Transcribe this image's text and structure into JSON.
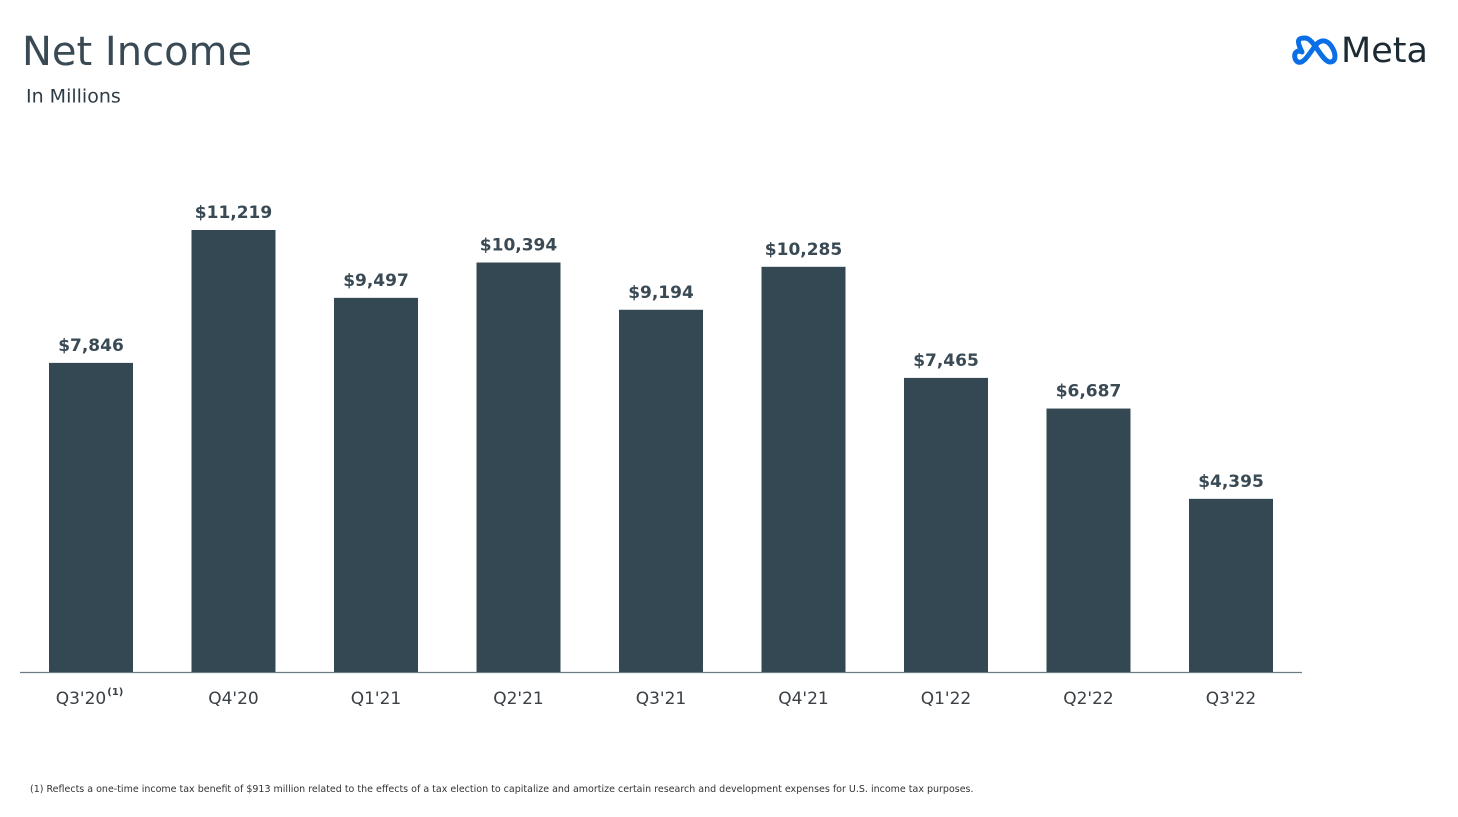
{
  "chart_data": {
    "type": "bar",
    "title": "Net Income",
    "subtitle": "In Millions",
    "logo": "Meta",
    "categories": [
      "Q3'20",
      "Q4'20",
      "Q1'21",
      "Q2'21",
      "Q3'21",
      "Q4'21",
      "Q1'22",
      "Q2'22",
      "Q3'22"
    ],
    "values": [
      7846,
      11219,
      9497,
      10394,
      9194,
      10285,
      7465,
      6687,
      4395
    ],
    "value_labels": [
      "$7,846",
      "$11,219",
      "$9,497",
      "$10,394",
      "$9,194",
      "$10,285",
      "$7,465",
      "$6,687",
      "$4,395"
    ],
    "color": "#344853",
    "footnote": {
      "marker": "(1)",
      "text": "Reflects a one-time income tax benefit of $913 million related to the effects of a tax election to capitalize and amortize certain research and development expenses for U.S. income tax purposes."
    }
  }
}
